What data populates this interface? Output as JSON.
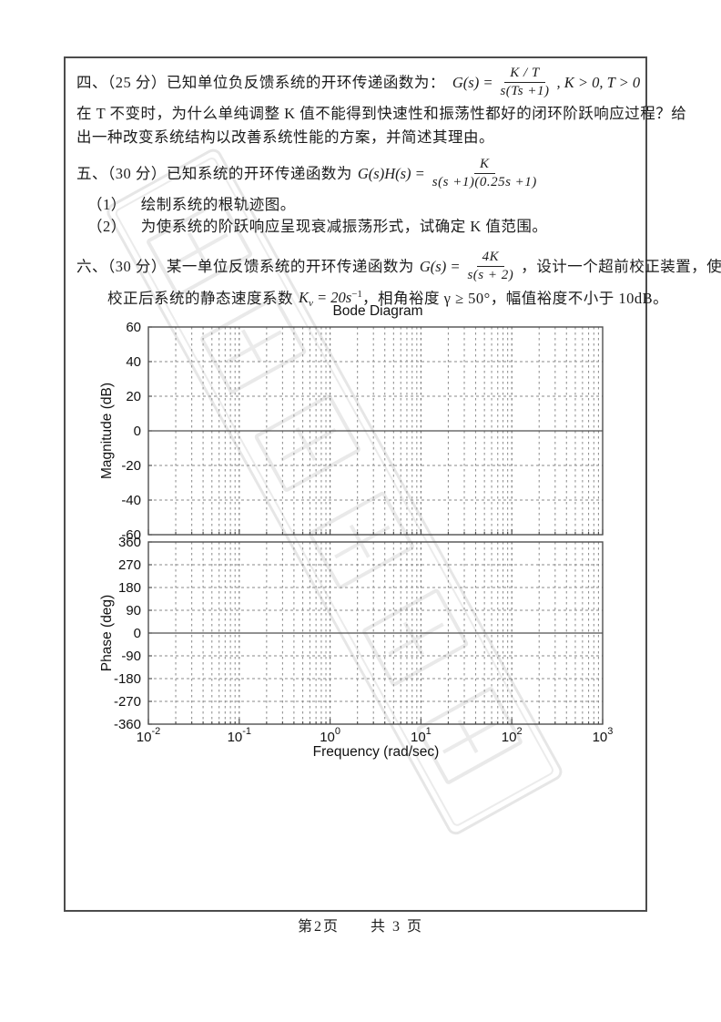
{
  "footer": {
    "page_label": "第2页",
    "total_label": "共 3 页"
  },
  "questions": {
    "q4": {
      "prefix": "四、（25 分）已知单位负反馈系统的开环传递函数为：",
      "formula": {
        "lhs": "G(s) =",
        "num": "K / T",
        "den": "s(Ts +1)",
        "tail": ", K > 0, T > 0"
      },
      "body_line1": "在 T 不变时，为什么单纯调整 K 值不能得到快速性和振荡性都好的闭环阶跃响应过程？给",
      "body_line2": "出一种改变系统结构以改善系统性能的方案，并简述其理由。"
    },
    "q5": {
      "prefix": "五、（30 分）已知系统的开环传递函数为",
      "formula": {
        "lhs": "G(s)H(s) =",
        "num": "K",
        "den": "s(s +1)(0.25s +1)"
      },
      "item1_no": "（1）",
      "item1_text": "绘制系统的根轨迹图。",
      "item2_no": "（2）",
      "item2_text": "为使系统的阶跃响应呈现衰减振荡形式，试确定 K 值范围。"
    },
    "q6": {
      "prefix": "六、（30 分）某一单位反馈系统的开环传递函数为",
      "formula": {
        "lhs": "G(s) =",
        "num": "4K",
        "den": "s(s + 2)"
      },
      "after_formula": "，设计一个超前校正装置，使",
      "line2_pre": "校正后系统的静态速度系数",
      "kv": {
        "base": "K",
        "sub": "v",
        "eq": " = 20s",
        "sup": "−1"
      },
      "line2_post": "，相角裕度 γ ≥ 50°，幅值裕度不小于 10dB。"
    }
  },
  "chart_data": {
    "type": "line",
    "title": "Bode Diagram",
    "xlabel": "Frequency  (rad/sec)",
    "x_scale": "log",
    "x_decades": [
      -2,
      3
    ],
    "x_tick_labels": [
      {
        "base": "10",
        "exp": "-2"
      },
      {
        "base": "10",
        "exp": "-1"
      },
      {
        "base": "10",
        "exp": "0"
      },
      {
        "base": "10",
        "exp": "1"
      },
      {
        "base": "10",
        "exp": "2"
      },
      {
        "base": "10",
        "exp": "3"
      }
    ],
    "grid": true,
    "legend": null,
    "series": [],
    "subplots": [
      {
        "name": "magnitude",
        "ylabel": "Magnitude (dB)",
        "ylim": [
          -60,
          60
        ],
        "yticks": [
          60,
          40,
          20,
          0,
          -20,
          -40,
          -60
        ],
        "solid_line_at": 0
      },
      {
        "name": "phase",
        "ylabel": "Phase (deg)",
        "ylim": [
          -360,
          360
        ],
        "yticks": [
          360,
          270,
          180,
          90,
          0,
          -90,
          -180,
          -270,
          -360
        ],
        "solid_line_at": 0
      }
    ]
  }
}
